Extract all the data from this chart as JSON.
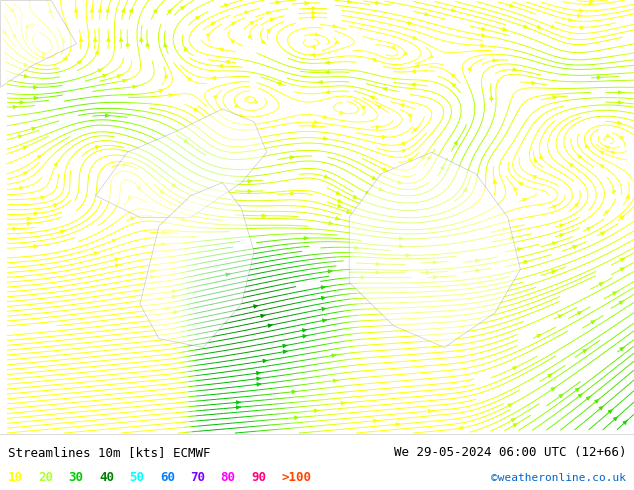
{
  "title_left": "Streamlines 10m [kts] ECMWF",
  "title_right": "We 29-05-2024 06:00 UTC (12+66)",
  "credit": "©weatheronline.co.uk",
  "legend_values": [
    "10",
    "20",
    "30",
    "40",
    "50",
    "60",
    "70",
    "80",
    "90",
    ">100"
  ],
  "legend_colors": [
    "#ffff00",
    "#adff2f",
    "#00cd00",
    "#008000",
    "#00ffff",
    "#0080ff",
    "#8000ff",
    "#ff00ff",
    "#ff0080",
    "#ff4500"
  ],
  "map_bg": "#b8ffb0",
  "land_color": "#f0f0e0",
  "ocean_color": "#e8f8f0",
  "figsize": [
    6.34,
    4.9
  ],
  "dpi": 100,
  "text_color": "#000000",
  "font_size": 9,
  "bottom_bar_color": "#ffffff",
  "coast_color": "#999999",
  "streamline_density": 3.0,
  "streamline_lw": 0.7,
  "arrow_size": 0.6
}
